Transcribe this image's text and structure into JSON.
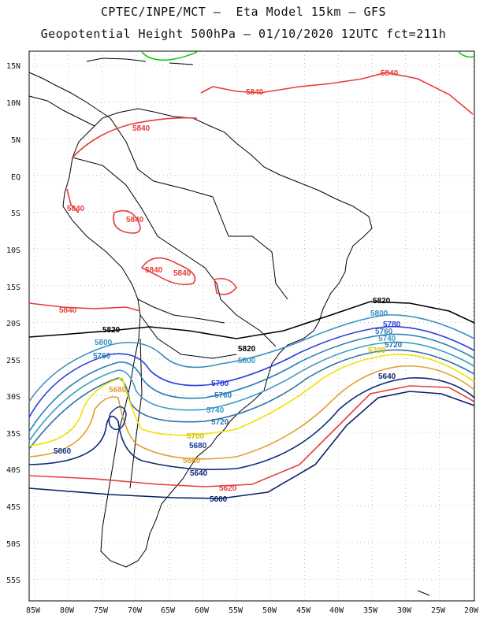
{
  "header": {
    "line1": "CPTEC/INPE/MCT –  Eta Model 15km – GFS",
    "line2": "Geopotential Height 500hPa – 01/10/2020 12UTC fct=211h"
  },
  "axes": {
    "lat_labels": [
      "15N",
      "10N",
      "5N",
      "EQ",
      "5S",
      "10S",
      "15S",
      "20S",
      "25S",
      "30S",
      "35S",
      "40S",
      "45S",
      "50S",
      "55S"
    ],
    "lon_labels": [
      "85W",
      "80W",
      "75W",
      "70W",
      "65W",
      "60W",
      "55W",
      "50W",
      "45W",
      "40W",
      "35W",
      "30W",
      "25W",
      "20W"
    ]
  },
  "contours": {
    "c5840": "5840",
    "c5820": "5820",
    "c5800": "5800",
    "c5780": "5780",
    "c5760": "5760",
    "c5740": "5740",
    "c5720": "5720",
    "c5700": "5700",
    "c5680": "5680",
    "c5660": "5660",
    "c5640": "5640",
    "c5620": "5620",
    "c5600": "5600"
  },
  "colors": {
    "c5840": "#e83c3c",
    "c5820": "#000000",
    "c5800": "#3a8fc0",
    "c5780": "#2a3fdc",
    "c5760": "#2b7fb8",
    "c5740": "#3a9cc8",
    "c5720": "#2e6fa8",
    "c5700": "#f2e200",
    "c5680": "#e0a030",
    "c5660": "#183a90",
    "c5640": "#0f2a7a",
    "c5620": "#e83c3c",
    "c5600": "#0a1f6a",
    "green": "#00cc00",
    "coast": "#000000",
    "grid": "#9a9a9a"
  }
}
